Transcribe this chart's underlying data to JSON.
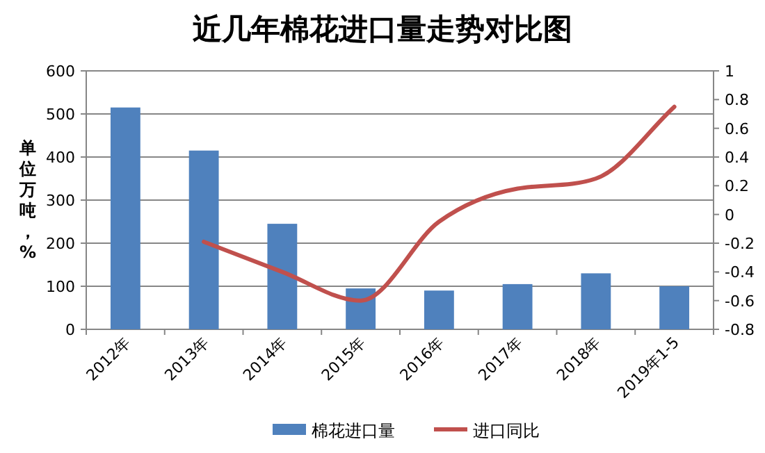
{
  "chart_data": {
    "type": "bar",
    "title": "近几年棉花进口量走势对比图",
    "ylabel": "单位万吨，%",
    "categories": [
      "2012年",
      "2013年",
      "2014年",
      "2015年",
      "2016年",
      "2017年",
      "2018年",
      "2019年1-5"
    ],
    "series": [
      {
        "name": "棉花进口量",
        "color": "#4f81bd",
        "values": [
          515,
          415,
          245,
          95,
          90,
          105,
          130,
          100
        ]
      },
      {
        "name": "进口同比",
        "type": "line",
        "axis": "y2",
        "color": "#c0504d",
        "values": [
          null,
          -0.19,
          -0.4,
          -0.6,
          -0.05,
          0.18,
          0.25,
          0.75
        ]
      }
    ],
    "ylim": [
      0,
      600
    ],
    "yticks": [
      0,
      100,
      200,
      300,
      400,
      500,
      600
    ],
    "y2lim": [
      -0.8,
      1
    ],
    "y2ticks": [
      -0.8,
      -0.6,
      -0.4,
      -0.2,
      0,
      0.2,
      0.4,
      0.6,
      0.8,
      1
    ],
    "grid": "y",
    "legend": "bottom",
    "marker": "none",
    "line_style": "solid"
  }
}
